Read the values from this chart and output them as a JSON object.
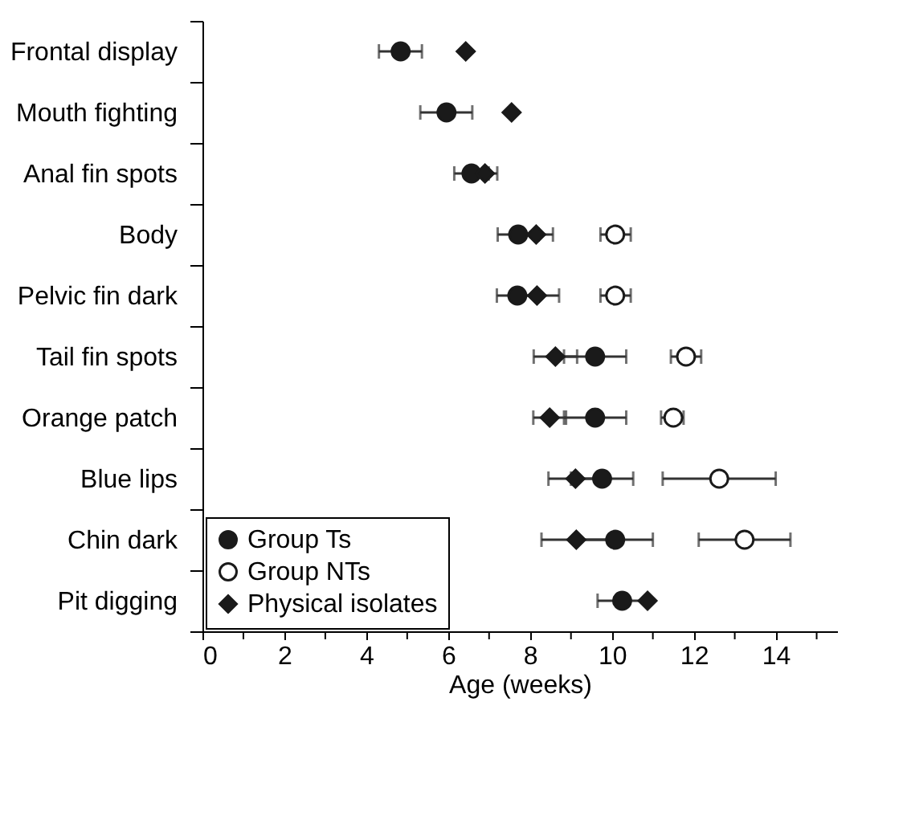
{
  "chart_data": {
    "type": "scatter",
    "xlabel": "Age (weeks)",
    "orientation": "horizontal",
    "categories": [
      "Frontal display",
      "Mouth fighting",
      "Anal fin spots",
      "Body",
      "Pelvic fin dark",
      "Tail fin spots",
      "Orange patch",
      "Blue lips",
      "Chin dark",
      "Pit digging"
    ],
    "series": [
      {
        "name": "Group Ts",
        "color": "#1a1a1a",
        "marker": "circle",
        "values": [
          4.84,
          5.96,
          6.57,
          7.71,
          7.69,
          9.59,
          9.59,
          9.76,
          10.08,
          10.25
        ],
        "errors": [
          [
            4.31,
            5.36
          ],
          [
            5.32,
            6.59
          ],
          0.42,
          0.5,
          0.5,
          0.76,
          0.76,
          0.76,
          0.92,
          0.6
        ]
      },
      {
        "name": "Group NTs",
        "color": "#1a1a1a",
        "marker": "open circle",
        "values": [
          null,
          null,
          null,
          10.08,
          10.08,
          11.81,
          11.5,
          12.62,
          13.24,
          null
        ],
        "errors": [
          null,
          null,
          null,
          [
            9.72,
            10.46
          ],
          [
            9.72,
            10.46
          ],
          [
            11.44,
            12.18
          ],
          [
            11.2,
            11.75
          ],
          [
            11.24,
            14.0
          ],
          [
            12.12,
            14.36
          ],
          null
        ]
      },
      {
        "name": "Physical isolates",
        "color": "#1a1a1a",
        "marker": "diamond",
        "values": [
          6.43,
          7.55,
          6.9,
          8.15,
          8.17,
          8.62,
          8.48,
          9.11,
          9.13,
          10.87
        ],
        "errors": [
          null,
          null,
          0.3,
          0.41,
          0.54,
          0.53,
          0.4,
          0.66,
          0.85,
          null
        ]
      }
    ],
    "xlim": [
      0,
      15.5
    ],
    "xticks": [
      0,
      {
        "value": 1,
        "label": null
      },
      2,
      {
        "value": 3,
        "label": null
      },
      4,
      {
        "value": 5,
        "label": null
      },
      6,
      {
        "value": 7,
        "label": null
      },
      8,
      {
        "value": 9,
        "label": null
      },
      10,
      {
        "value": 11,
        "label": null
      },
      12,
      {
        "value": 13,
        "label": null
      },
      14,
      {
        "value": 15,
        "label": null
      }
    ],
    "grid": false,
    "legend": "bottom left"
  }
}
